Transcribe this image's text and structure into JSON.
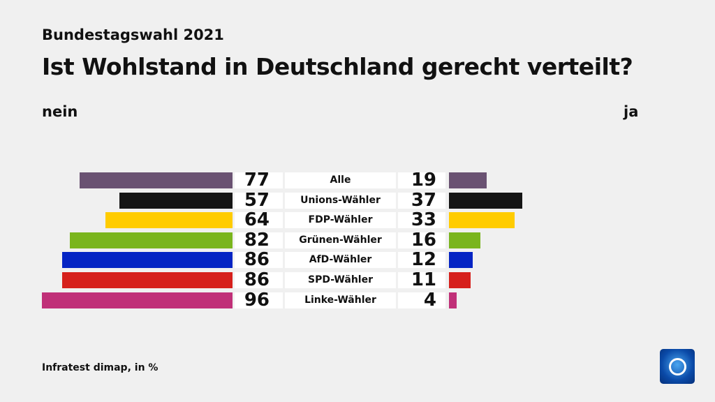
{
  "header": {
    "subtitle": "Bundestagswahl 2021",
    "title": "Ist Wohlstand in Deutschland gerecht verteilt?",
    "left_label": "nein",
    "right_label": "ja"
  },
  "footer": {
    "source": "Infratest dimap, in %"
  },
  "chart_data": {
    "type": "bar",
    "orientation": "diverging-horizontal",
    "categories": [
      "Alle",
      "Unions-Wähler",
      "FDP-Wähler",
      "Grünen-Wähler",
      "AfD-Wähler",
      "SPD-Wähler",
      "Linke-Wähler"
    ],
    "series": [
      {
        "name": "nein",
        "values": [
          77,
          57,
          64,
          82,
          86,
          86,
          96
        ]
      },
      {
        "name": "ja",
        "values": [
          19,
          37,
          33,
          16,
          12,
          11,
          4
        ]
      }
    ],
    "colors": [
      "#6a5272",
      "#151515",
      "#ffcc00",
      "#7ab51d",
      "#0524c4",
      "#d6201c",
      "#c03078"
    ],
    "unit": "%"
  }
}
